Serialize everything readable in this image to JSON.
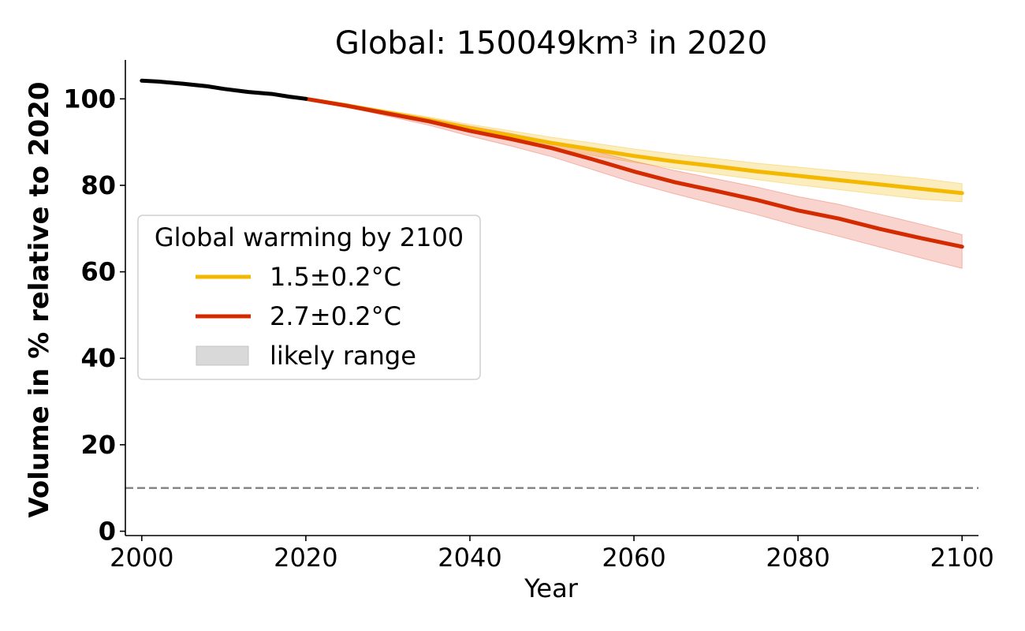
{
  "chart_data": {
    "type": "line",
    "title": "Global: 150049km³ in 2020",
    "xlabel": "Year",
    "ylabel": "Volume in % relative to 2020",
    "xlim": [
      1998,
      2102
    ],
    "ylim": [
      -1,
      109
    ],
    "xticks": [
      2000,
      2020,
      2040,
      2060,
      2080,
      2100
    ],
    "yticks": [
      0,
      20,
      40,
      60,
      80,
      100
    ],
    "grid": false,
    "legend": {
      "title": "Global warming by 2100",
      "placement": "center-left",
      "entries": [
        {
          "label": "1.5±0.2°C",
          "color": "#f5b800",
          "kind": "line"
        },
        {
          "label": "2.7±0.2°C",
          "color": "#d42a00",
          "kind": "line"
        },
        {
          "label": "likely range",
          "color": "#d9d9d9",
          "kind": "patch"
        }
      ]
    },
    "reference_line": {
      "y": 10,
      "style": "dashed",
      "color": "#808080"
    },
    "historical": {
      "color": "#000000",
      "x": [
        2000,
        2002,
        2005,
        2008,
        2010,
        2013,
        2016,
        2018,
        2020
      ],
      "y": [
        104.2,
        104.0,
        103.5,
        102.9,
        102.3,
        101.6,
        101.1,
        100.5,
        100.0
      ]
    },
    "series": [
      {
        "label": "1.5±0.2°C",
        "color": "#f5b800",
        "band_color": "#f5b800",
        "x": [
          2020,
          2025,
          2030,
          2035,
          2040,
          2045,
          2050,
          2055,
          2060,
          2065,
          2070,
          2075,
          2080,
          2085,
          2090,
          2095,
          2100
        ],
        "y": [
          100.0,
          98.5,
          96.8,
          95.1,
          93.2,
          91.5,
          89.8,
          88.3,
          86.8,
          85.5,
          84.4,
          83.2,
          82.2,
          81.2,
          80.2,
          79.2,
          78.2
        ],
        "low": [
          100.0,
          98.2,
          96.3,
          94.4,
          92.3,
          90.4,
          88.6,
          86.9,
          85.3,
          83.9,
          82.6,
          81.3,
          80.1,
          79.0,
          77.9,
          76.8,
          76.2
        ],
        "high": [
          100.0,
          98.8,
          97.3,
          95.8,
          94.1,
          92.6,
          91.1,
          89.8,
          88.4,
          87.2,
          86.2,
          85.1,
          84.2,
          83.3,
          82.5,
          81.6,
          80.4
        ]
      },
      {
        "label": "2.7±0.2°C",
        "color": "#d42a00",
        "band_color": "#e8503a",
        "x": [
          2020,
          2025,
          2030,
          2035,
          2040,
          2045,
          2050,
          2055,
          2060,
          2065,
          2070,
          2075,
          2080,
          2085,
          2090,
          2095,
          2100
        ],
        "y": [
          100.0,
          98.4,
          96.6,
          94.8,
          92.6,
          90.7,
          88.6,
          86.0,
          83.2,
          80.7,
          78.7,
          76.6,
          74.2,
          72.3,
          69.9,
          67.8,
          65.8
        ],
        "low": [
          100.0,
          98.1,
          96.0,
          93.9,
          91.4,
          89.1,
          86.6,
          83.6,
          80.6,
          78.0,
          75.6,
          73.2,
          70.6,
          68.2,
          65.7,
          63.2,
          60.8
        ],
        "high": [
          100.0,
          98.7,
          97.1,
          95.5,
          93.7,
          92.0,
          90.1,
          88.0,
          85.6,
          83.4,
          81.5,
          79.6,
          77.4,
          75.6,
          73.3,
          71.0,
          68.6
        ]
      }
    ]
  }
}
